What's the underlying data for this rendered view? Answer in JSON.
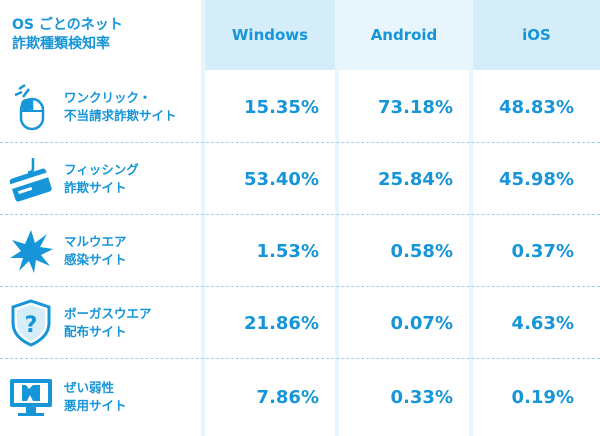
{
  "header": {
    "title": "OS ごとのネット\n詐欺種類検知率",
    "columns": [
      "Windows",
      "Android",
      "iOS"
    ]
  },
  "rows": [
    {
      "label": "ワンクリック・\n不当請求詐欺サイト",
      "icon": "mouse-icon",
      "values": [
        "15.35%",
        "73.18%",
        "48.83%"
      ]
    },
    {
      "label": "フィッシング\n詐欺サイト",
      "icon": "credit-card-hook-icon",
      "values": [
        "53.40%",
        "25.84%",
        "45.98%"
      ]
    },
    {
      "label": "マルウエア\n感染サイト",
      "icon": "burst-icon",
      "values": [
        "1.53%",
        "0.58%",
        "0.37%"
      ]
    },
    {
      "label": "ボーガスウエア\n配布サイト",
      "icon": "shield-question-icon",
      "values": [
        "21.86%",
        "0.07%",
        "4.63%"
      ]
    },
    {
      "label": "ぜい弱性\n悪用サイト",
      "icon": "broken-monitor-icon",
      "values": [
        "7.86%",
        "0.33%",
        "0.19%"
      ]
    }
  ],
  "colors": {
    "accent": "#1695d8",
    "header_bg": "#d5ecf9",
    "header_bg_alt": "#e9f5fc"
  }
}
